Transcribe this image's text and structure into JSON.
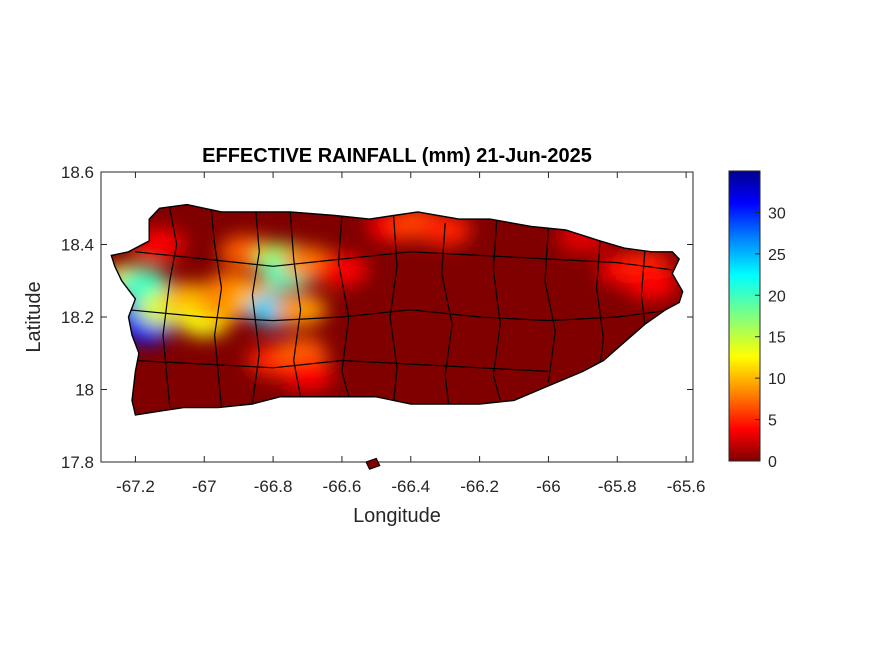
{
  "title": "EFFECTIVE RAINFALL (mm) 21-Jun-2025",
  "xlabel": "Longitude",
  "ylabel": "Latitude",
  "x_ticks": [
    {
      "value": -67.2,
      "label": "-67.2"
    },
    {
      "value": -67.0,
      "label": "-67"
    },
    {
      "value": -66.8,
      "label": "-66.8"
    },
    {
      "value": -66.6,
      "label": "-66.6"
    },
    {
      "value": -66.4,
      "label": "-66.4"
    },
    {
      "value": -66.2,
      "label": "-66.2"
    },
    {
      "value": -66.0,
      "label": "-66"
    },
    {
      "value": -65.8,
      "label": "-65.8"
    },
    {
      "value": -65.6,
      "label": "-65.6"
    }
  ],
  "y_ticks": [
    {
      "value": 17.8,
      "label": "17.8"
    },
    {
      "value": 18.0,
      "label": "18"
    },
    {
      "value": 18.2,
      "label": "18.2"
    },
    {
      "value": 18.4,
      "label": "18.4"
    },
    {
      "value": 18.6,
      "label": "18.6"
    }
  ],
  "xlim": [
    -67.3,
    -65.58
  ],
  "ylim": [
    17.8,
    18.6
  ],
  "colorbar": {
    "colormap": "jet",
    "limits": [
      0,
      35
    ],
    "ticks": [
      {
        "value": 0,
        "label": "0"
      },
      {
        "value": 5,
        "label": "5"
      },
      {
        "value": 10,
        "label": "10"
      },
      {
        "value": 15,
        "label": "15"
      },
      {
        "value": 20,
        "label": "20"
      },
      {
        "value": 25,
        "label": "25"
      },
      {
        "value": 30,
        "label": "30"
      }
    ]
  },
  "colors": {
    "background_value": "#800000",
    "outline": "#000000"
  },
  "chart_data": {
    "type": "heatmap",
    "title": "EFFECTIVE RAINFALL (mm) 21-Jun-2025",
    "xlabel": "Longitude",
    "ylabel": "Latitude",
    "xlim": [
      -67.3,
      -65.58
    ],
    "ylim": [
      17.8,
      18.6
    ],
    "value_range": [
      0,
      35
    ],
    "baseline_value_mm": 0,
    "rainfall_cells": [
      {
        "lon": -67.22,
        "lat": 18.3,
        "value": 12
      },
      {
        "lon": -67.18,
        "lat": 18.22,
        "value": 26
      },
      {
        "lon": -67.18,
        "lat": 18.29,
        "value": 20
      },
      {
        "lon": -67.17,
        "lat": 18.17,
        "value": 30
      },
      {
        "lon": -67.12,
        "lat": 18.22,
        "value": 14
      },
      {
        "lon": -67.05,
        "lat": 18.25,
        "value": 10
      },
      {
        "lon": -67.0,
        "lat": 18.19,
        "value": 13
      },
      {
        "lon": -66.95,
        "lat": 18.23,
        "value": 9
      },
      {
        "lon": -66.92,
        "lat": 18.28,
        "value": 8
      },
      {
        "lon": -66.88,
        "lat": 18.38,
        "value": 7
      },
      {
        "lon": -66.85,
        "lat": 18.25,
        "value": 10
      },
      {
        "lon": -66.8,
        "lat": 18.22,
        "value": 24
      },
      {
        "lon": -66.78,
        "lat": 18.36,
        "value": 16
      },
      {
        "lon": -66.76,
        "lat": 18.32,
        "value": 20
      },
      {
        "lon": -66.72,
        "lat": 18.22,
        "value": 9
      },
      {
        "lon": -66.7,
        "lat": 18.35,
        "value": 8
      },
      {
        "lon": -66.6,
        "lat": 18.33,
        "value": 4
      },
      {
        "lon": -66.8,
        "lat": 18.08,
        "value": 5
      },
      {
        "lon": -66.72,
        "lat": 18.1,
        "value": 7
      },
      {
        "lon": -66.7,
        "lat": 18.04,
        "value": 4
      },
      {
        "lon": -66.45,
        "lat": 18.45,
        "value": 4
      },
      {
        "lon": -66.38,
        "lat": 18.46,
        "value": 6
      },
      {
        "lon": -66.3,
        "lat": 18.44,
        "value": 5
      },
      {
        "lon": -67.13,
        "lat": 18.4,
        "value": 4
      },
      {
        "lon": -65.9,
        "lat": 18.42,
        "value": 3
      },
      {
        "lon": -65.78,
        "lat": 18.33,
        "value": 4
      },
      {
        "lon": -65.72,
        "lat": 18.34,
        "value": 5
      },
      {
        "lon": -65.7,
        "lat": 18.29,
        "value": 4
      }
    ]
  }
}
